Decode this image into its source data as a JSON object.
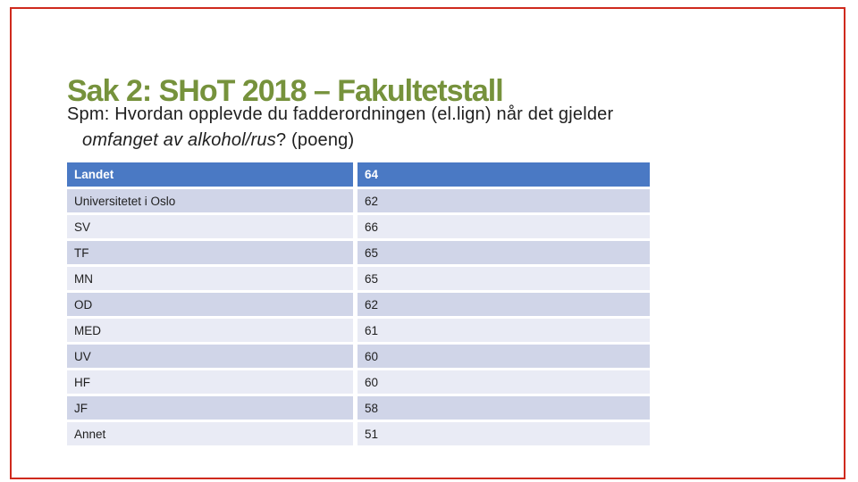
{
  "slide": {
    "title": "Sak 2: SHoT 2018 – Fakultetstall",
    "question": {
      "prefix": "Spm: Hvordan opplevde du fadderordningen (el.lign) når det gjelder",
      "italic": "omfanget av alkohol/rus",
      "suffix": "? (poeng)"
    }
  },
  "chart_data": {
    "type": "table",
    "header_row": {
      "label": "Landet",
      "value": "64"
    },
    "rows": [
      {
        "label": "Universitetet i Oslo",
        "value": "62"
      },
      {
        "label": "SV",
        "value": "66"
      },
      {
        "label": "TF",
        "value": "65"
      },
      {
        "label": "MN",
        "value": "65"
      },
      {
        "label": "OD",
        "value": "62"
      },
      {
        "label": "MED",
        "value": "61"
      },
      {
        "label": "UV",
        "value": "60"
      },
      {
        "label": "HF",
        "value": "60"
      },
      {
        "label": "JF",
        "value": "58"
      },
      {
        "label": "Annet",
        "value": "51"
      }
    ]
  },
  "colors": {
    "title-green": "#76923c",
    "border-red": "#cf2a1d",
    "header-blue": "#4a79c4",
    "band-dark": "#d0d5e8",
    "band-light": "#e9ebf5",
    "header-text": "#ffffff",
    "body-text": "#1f1f1f"
  }
}
